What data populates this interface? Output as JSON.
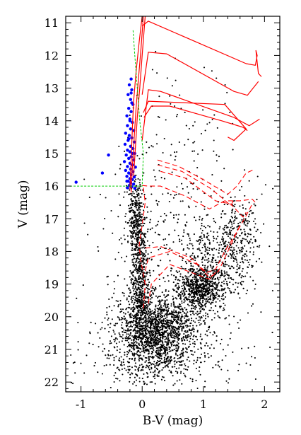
{
  "chart_data": {
    "type": "scatter",
    "title": "",
    "xlabel": "B-V (mag)",
    "ylabel": "V (mag)",
    "xlim": [
      -1.25,
      2.25
    ],
    "ylim": [
      22.3,
      10.8
    ],
    "y_inverted": true,
    "grid": false,
    "x_ticks": [
      {
        "value": -1,
        "label": "-1"
      },
      {
        "value": 0,
        "label": "0"
      },
      {
        "value": 1,
        "label": "1"
      },
      {
        "value": 2,
        "label": "2"
      }
    ],
    "y_ticks": [
      {
        "value": 11,
        "label": "11"
      },
      {
        "value": 12,
        "label": "12"
      },
      {
        "value": 13,
        "label": "13"
      },
      {
        "value": 14,
        "label": "14"
      },
      {
        "value": 15,
        "label": "15"
      },
      {
        "value": 16,
        "label": "16"
      },
      {
        "value": 17,
        "label": "17"
      },
      {
        "value": 18,
        "label": "18"
      },
      {
        "value": 19,
        "label": "19"
      },
      {
        "value": 20,
        "label": "20"
      },
      {
        "value": 21,
        "label": "21"
      },
      {
        "value": 22,
        "label": "22"
      }
    ],
    "colors": {
      "field_stars": "#000000",
      "highlighted_stars": "#0000ff",
      "isochrones": "#ff0000",
      "guide_line": "#00cc00"
    },
    "series": [
      {
        "kind": "points",
        "color": "#0000ff",
        "point_radius": 2.2,
        "points": [
          [
            -0.18,
            12.72
          ],
          [
            -0.21,
            12.9
          ],
          [
            -0.17,
            13.05
          ],
          [
            -0.23,
            13.2
          ],
          [
            -0.19,
            13.35
          ],
          [
            -0.15,
            13.5
          ],
          [
            -0.22,
            13.62
          ],
          [
            -0.18,
            13.72
          ],
          [
            -0.25,
            13.85
          ],
          [
            -0.2,
            13.95
          ],
          [
            -0.16,
            14.05
          ],
          [
            -0.24,
            14.15
          ],
          [
            -0.19,
            14.25
          ],
          [
            -0.14,
            14.3
          ],
          [
            -0.27,
            14.38
          ],
          [
            -0.21,
            14.45
          ],
          [
            -0.17,
            14.52
          ],
          [
            -0.23,
            14.6
          ],
          [
            -0.13,
            14.65
          ],
          [
            -0.28,
            14.72
          ],
          [
            -0.19,
            14.78
          ],
          [
            -0.15,
            14.85
          ],
          [
            -0.24,
            14.9
          ],
          [
            -0.2,
            14.95
          ],
          [
            -0.12,
            15.0
          ],
          [
            -0.26,
            15.05
          ],
          [
            -0.18,
            15.1
          ],
          [
            -0.22,
            15.15
          ],
          [
            -0.14,
            15.2
          ],
          [
            -0.29,
            15.25
          ],
          [
            -0.2,
            15.3
          ],
          [
            -0.16,
            15.35
          ],
          [
            -0.24,
            15.4
          ],
          [
            -0.11,
            15.42
          ],
          [
            -0.19,
            15.48
          ],
          [
            -0.27,
            15.52
          ],
          [
            -0.15,
            15.56
          ],
          [
            -0.22,
            15.6
          ],
          [
            -0.18,
            15.65
          ],
          [
            -0.25,
            15.7
          ],
          [
            -0.13,
            15.72
          ],
          [
            -0.2,
            15.77
          ],
          [
            -0.16,
            15.8
          ],
          [
            -0.23,
            15.85
          ],
          [
            -0.19,
            15.9
          ],
          [
            -0.14,
            15.94
          ],
          [
            -0.21,
            15.98
          ],
          [
            -0.17,
            16.02
          ],
          [
            -0.24,
            16.05
          ],
          [
            -0.12,
            16.07
          ],
          [
            -0.2,
            14.0
          ],
          [
            -0.17,
            13.45
          ],
          [
            -0.22,
            14.55
          ],
          [
            -0.16,
            15.0
          ],
          [
            -0.25,
            15.85
          ],
          [
            -0.18,
            13.15
          ],
          [
            -0.55,
            15.05
          ],
          [
            -0.65,
            15.6
          ],
          [
            -1.08,
            15.88
          ]
        ]
      },
      {
        "kind": "lines",
        "color": "#ff0000",
        "dashed": false,
        "width": 1.2,
        "lines": [
          [
            [
              0.0,
              10.8
            ],
            [
              -0.05,
              11.6
            ],
            [
              -0.1,
              12.5
            ],
            [
              -0.14,
              13.4
            ],
            [
              -0.16,
              14.2
            ],
            [
              -0.18,
              15.2
            ],
            [
              -0.2,
              16.1
            ]
          ],
          [
            [
              0.02,
              10.8
            ],
            [
              -0.02,
              11.8
            ],
            [
              -0.06,
              12.7
            ],
            [
              -0.1,
              13.6
            ],
            [
              -0.13,
              14.5
            ],
            [
              -0.16,
              15.4
            ],
            [
              -0.18,
              16.2
            ]
          ],
          [
            [
              0.05,
              10.8
            ],
            [
              0.0,
              12.0
            ],
            [
              -0.04,
              13.0
            ],
            [
              -0.08,
              13.9
            ],
            [
              -0.11,
              14.8
            ],
            [
              -0.14,
              15.7
            ]
          ],
          [
            [
              0.0,
              11.1
            ],
            [
              0.1,
              10.95
            ],
            [
              1.7,
              12.25
            ],
            [
              1.85,
              12.3
            ],
            [
              1.88,
              12.0
            ],
            [
              1.86,
              11.85
            ],
            [
              1.9,
              12.55
            ],
            [
              1.95,
              12.65
            ]
          ],
          [
            [
              0.0,
              13.2
            ],
            [
              0.1,
              11.9
            ],
            [
              0.4,
              11.95
            ],
            [
              1.5,
              13.1
            ],
            [
              1.72,
              13.22
            ],
            [
              1.9,
              12.8
            ]
          ],
          [
            [
              0.0,
              14.6
            ],
            [
              0.1,
              13.05
            ],
            [
              0.3,
              13.1
            ],
            [
              1.5,
              13.9
            ],
            [
              1.75,
              14.15
            ],
            [
              1.92,
              13.95
            ]
          ],
          [
            [
              0.02,
              13.75
            ],
            [
              0.1,
              13.4
            ],
            [
              1.35,
              13.5
            ],
            [
              1.7,
              14.25
            ],
            [
              1.5,
              14.6
            ],
            [
              1.4,
              14.5
            ]
          ],
          [
            [
              0.03,
              13.9
            ],
            [
              0.15,
              13.55
            ],
            [
              0.45,
              13.55
            ],
            [
              1.3,
              14.0
            ],
            [
              1.65,
              14.2
            ],
            [
              1.72,
              14.3
            ]
          ]
        ]
      },
      {
        "kind": "lines",
        "color": "#ff0000",
        "dashed": true,
        "width": 1.1,
        "lines": [
          [
            [
              0.25,
              15.2
            ],
            [
              0.6,
              15.4
            ],
            [
              1.0,
              15.8
            ],
            [
              1.4,
              16.25
            ],
            [
              1.55,
              16.0
            ],
            [
              1.7,
              15.6
            ],
            [
              1.82,
              15.5
            ]
          ],
          [
            [
              0.25,
              15.35
            ],
            [
              0.65,
              15.55
            ],
            [
              1.1,
              16.05
            ],
            [
              1.3,
              16.35
            ],
            [
              1.45,
              16.6
            ],
            [
              1.5,
              16.4
            ]
          ],
          [
            [
              0.3,
              15.55
            ],
            [
              0.7,
              15.75
            ],
            [
              1.2,
              16.45
            ],
            [
              1.45,
              16.55
            ],
            [
              1.65,
              16.95
            ],
            [
              1.7,
              16.8
            ]
          ],
          [
            [
              0.0,
              15.98
            ],
            [
              0.1,
              16.0
            ],
            [
              0.3,
              16.0
            ],
            [
              0.7,
              16.3
            ],
            [
              1.1,
              16.7
            ],
            [
              1.35,
              16.45
            ],
            [
              1.6,
              16.45
            ],
            [
              1.8,
              16.4
            ],
            [
              1.85,
              16.5
            ]
          ],
          [
            [
              0.02,
              16.05
            ],
            [
              0.05,
              16.5
            ],
            [
              0.0,
              17.2
            ],
            [
              -0.05,
              17.8
            ],
            [
              -0.02,
              18.3
            ],
            [
              0.05,
              19.0
            ],
            [
              0.02,
              19.8
            ]
          ],
          [
            [
              0.05,
              17.9
            ],
            [
              0.3,
              17.85
            ],
            [
              0.8,
              18.2
            ],
            [
              1.05,
              18.65
            ],
            [
              1.2,
              18.55
            ],
            [
              1.35,
              18.0
            ],
            [
              1.55,
              17.4
            ],
            [
              1.7,
              16.9
            ],
            [
              1.8,
              16.55
            ]
          ],
          [
            [
              0.05,
              18.6
            ],
            [
              0.1,
              18.2
            ],
            [
              0.45,
              18.0
            ],
            [
              0.9,
              18.4
            ],
            [
              1.1,
              18.8
            ],
            [
              1.25,
              18.6
            ],
            [
              1.4,
              18.0
            ],
            [
              1.6,
              17.2
            ]
          ],
          [
            [
              0.1,
              19.6
            ],
            [
              0.15,
              19.0
            ],
            [
              0.45,
              18.4
            ],
            [
              1.1,
              18.85
            ],
            [
              1.22,
              18.6
            ]
          ]
        ]
      },
      {
        "kind": "lines",
        "color": "#00cc00",
        "dashed": true,
        "width": 1.0,
        "lines": [
          [
            [
              -1.18,
              16.0
            ],
            [
              0.0,
              16.0
            ],
            [
              0.02,
              15.0
            ],
            [
              -0.04,
              14.0
            ],
            [
              -0.08,
              13.0
            ],
            [
              -0.12,
              12.0
            ],
            [
              -0.15,
              11.2
            ]
          ]
        ]
      }
    ],
    "field_star_clusters": [
      {
        "count": 1300,
        "center": [
          0.25,
          20.4
        ],
        "spread": [
          0.32,
          0.55
        ]
      },
      {
        "count": 650,
        "center": [
          -0.04,
          18.7
        ],
        "spread": [
          0.08,
          1.2
        ]
      },
      {
        "count": 220,
        "center": [
          -0.12,
          16.9
        ],
        "spread": [
          0.06,
          0.55
        ]
      },
      {
        "count": 650,
        "center": [
          0.95,
          19.15
        ],
        "spread": [
          0.17,
          0.32
        ]
      },
      {
        "count": 420,
        "center": [
          1.25,
          18.3
        ],
        "spread": [
          0.28,
          0.6
        ]
      },
      {
        "count": 160,
        "center": [
          1.6,
          17.3
        ],
        "spread": [
          0.18,
          0.45
        ]
      },
      {
        "count": 520,
        "center": [
          0.3,
          20.9
        ],
        "spread": [
          0.5,
          0.6
        ]
      },
      {
        "count": 240,
        "center": [
          0.5,
          19.0
        ],
        "spread": [
          0.7,
          1.4
        ]
      },
      {
        "count": 150,
        "center": [
          0.6,
          16.8
        ],
        "spread": [
          0.7,
          0.8
        ]
      },
      {
        "count": 90,
        "center": [
          0.6,
          14.5
        ],
        "spread": [
          0.5,
          1.1
        ]
      },
      {
        "count": 90,
        "center": [
          0.2,
          21.6
        ],
        "spread": [
          0.9,
          0.35
        ]
      }
    ]
  }
}
